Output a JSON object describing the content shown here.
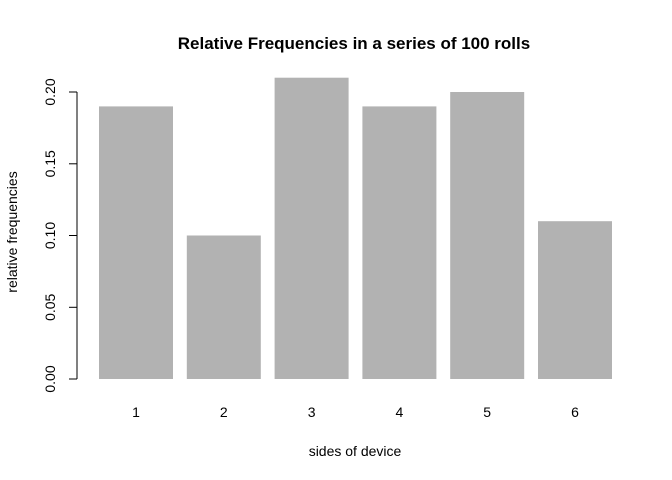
{
  "chart_data": {
    "type": "bar",
    "title": "Relative Frequencies in a series of 100 rolls",
    "xlabel": "sides of device",
    "ylabel": "relative frequencies",
    "categories": [
      "1",
      "2",
      "3",
      "4",
      "5",
      "6"
    ],
    "values": [
      0.19,
      0.1,
      0.21,
      0.19,
      0.2,
      0.11
    ],
    "ylim": [
      0,
      0.21
    ],
    "yticks": [
      "0.00",
      "0.05",
      "0.10",
      "0.15",
      "0.20"
    ],
    "grid": false,
    "legend": "none",
    "bar_color": "#b2b2b2"
  }
}
